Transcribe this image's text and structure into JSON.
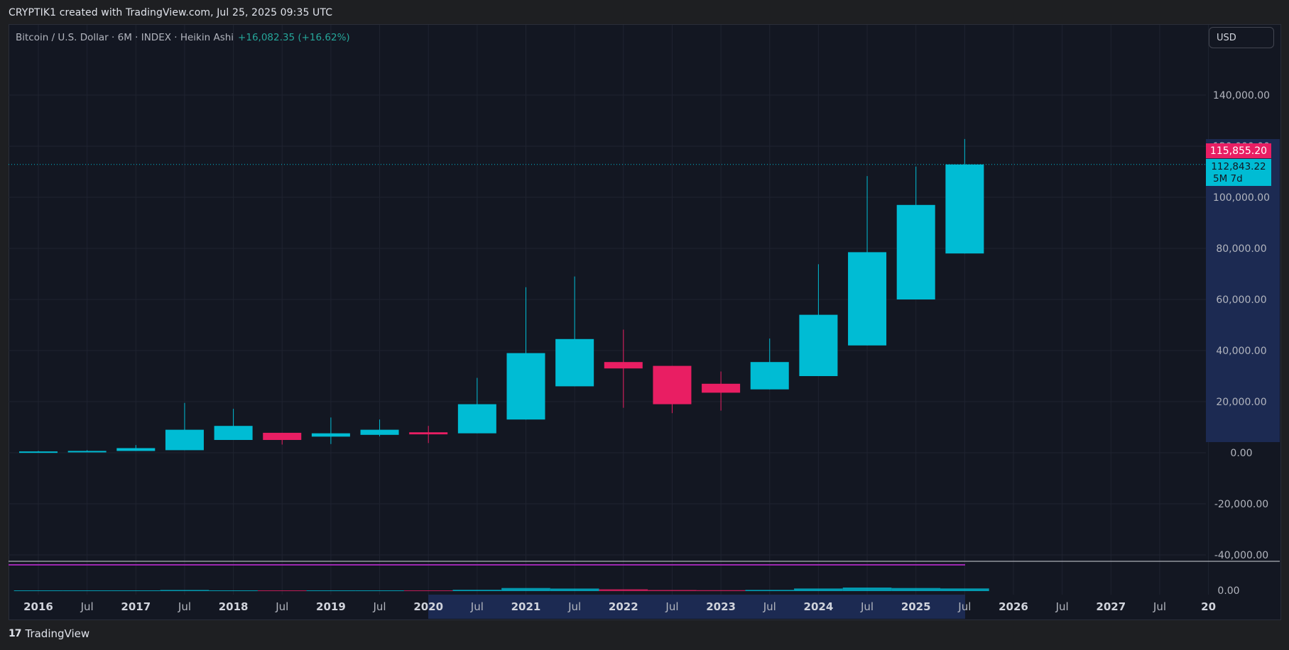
{
  "header": {
    "attribution": "CRYPTIK1 created with TradingView.com, Jul 25, 2025 09:35 UTC"
  },
  "legend": {
    "symbol": "Bitcoin / U.S. Dollar · 6M · INDEX · Heikin Ashi",
    "change": "+16,082.35 (+16.62%)"
  },
  "currency_button": "USD",
  "price_labels": {
    "high_label": "115,855.20",
    "last_label": "112,843.22",
    "countdown": "5M 7d",
    "hidden_axis_label": "120,000.00"
  },
  "footer": {
    "logo_text": "TradingView"
  },
  "colors": {
    "up": "#00bcd4",
    "down": "#e91e63",
    "background": "#131722",
    "grid": "#1f2330",
    "axis_highlight": "#1c2a52",
    "osc_line": "#9c27b0"
  },
  "chart_data": {
    "type": "candlestick",
    "style": "Heikin Ashi",
    "interval": "6M",
    "yticks": [
      140000,
      100000,
      80000,
      60000,
      40000,
      20000,
      0,
      -20000,
      -40000
    ],
    "ytick_labels": [
      "140,000.00",
      "100,000.00",
      "80,000.00",
      "60,000.00",
      "40,000.00",
      "20,000.00",
      "0.00",
      "-20,000.00",
      "-40,000.00"
    ],
    "ylim": [
      -40000,
      145000
    ],
    "lower_pane_label": "0.00",
    "xtick_labels": [
      "2016",
      "Jul",
      "2017",
      "Jul",
      "2018",
      "Jul",
      "2019",
      "Jul",
      "2020",
      "Jul",
      "2021",
      "Jul",
      "2022",
      "Jul",
      "2023",
      "Jul",
      "2024",
      "Jul",
      "2025",
      "Jul",
      "2026",
      "Jul",
      "2027",
      "Jul",
      "20"
    ],
    "candles": [
      {
        "period": "2016 H1",
        "open": 300,
        "close": 500,
        "high": 700,
        "low": 200,
        "dir": "up"
      },
      {
        "period": "2016 H2",
        "open": 500,
        "close": 700,
        "high": 1000,
        "low": 400,
        "dir": "up"
      },
      {
        "period": "2017 H1",
        "open": 700,
        "close": 1800,
        "high": 3000,
        "low": 700,
        "dir": "up"
      },
      {
        "period": "2017 H2",
        "open": 1000,
        "close": 9000,
        "high": 19500,
        "low": 1000,
        "dir": "up"
      },
      {
        "period": "2018 H1",
        "open": 5000,
        "close": 10500,
        "high": 17200,
        "low": 5000,
        "dir": "up"
      },
      {
        "period": "2018 H2",
        "open": 7800,
        "close": 5000,
        "high": 7800,
        "low": 3200,
        "dir": "down"
      },
      {
        "period": "2019 H1",
        "open": 6300,
        "close": 7600,
        "high": 13800,
        "low": 3400,
        "dir": "up"
      },
      {
        "period": "2019 H2",
        "open": 7000,
        "close": 9000,
        "high": 13000,
        "low": 6400,
        "dir": "up"
      },
      {
        "period": "2020 H1",
        "open": 8000,
        "close": 7200,
        "high": 10500,
        "low": 3800,
        "dir": "down"
      },
      {
        "period": "2020 H2",
        "open": 7600,
        "close": 19000,
        "high": 29300,
        "low": 7600,
        "dir": "up"
      },
      {
        "period": "2021 H1",
        "open": 13000,
        "close": 39000,
        "high": 64800,
        "low": 13000,
        "dir": "up"
      },
      {
        "period": "2021 H2",
        "open": 26000,
        "close": 44500,
        "high": 69000,
        "low": 26000,
        "dir": "up"
      },
      {
        "period": "2022 H1",
        "open": 35500,
        "close": 33000,
        "high": 48200,
        "low": 17600,
        "dir": "down"
      },
      {
        "period": "2022 H2",
        "open": 34000,
        "close": 19000,
        "high": 34000,
        "low": 15500,
        "dir": "down"
      },
      {
        "period": "2023 H1",
        "open": 27000,
        "close": 23500,
        "high": 31800,
        "low": 16500,
        "dir": "down"
      },
      {
        "period": "2023 H2",
        "open": 24800,
        "close": 35500,
        "high": 44700,
        "low": 24800,
        "dir": "up"
      },
      {
        "period": "2024 H1",
        "open": 30000,
        "close": 54000,
        "high": 73800,
        "low": 30000,
        "dir": "up"
      },
      {
        "period": "2024 H2",
        "open": 42000,
        "close": 78500,
        "high": 108300,
        "low": 42000,
        "dir": "up"
      },
      {
        "period": "2025 H1",
        "open": 60000,
        "close": 97000,
        "high": 112000,
        "low": 60000,
        "dir": "up"
      },
      {
        "period": "2025 H2",
        "open": 78000,
        "close": 112843.22,
        "high": 122800,
        "low": 78000,
        "dir": "up"
      }
    ],
    "last_price": 112843.22,
    "high_price": 115855.2
  }
}
